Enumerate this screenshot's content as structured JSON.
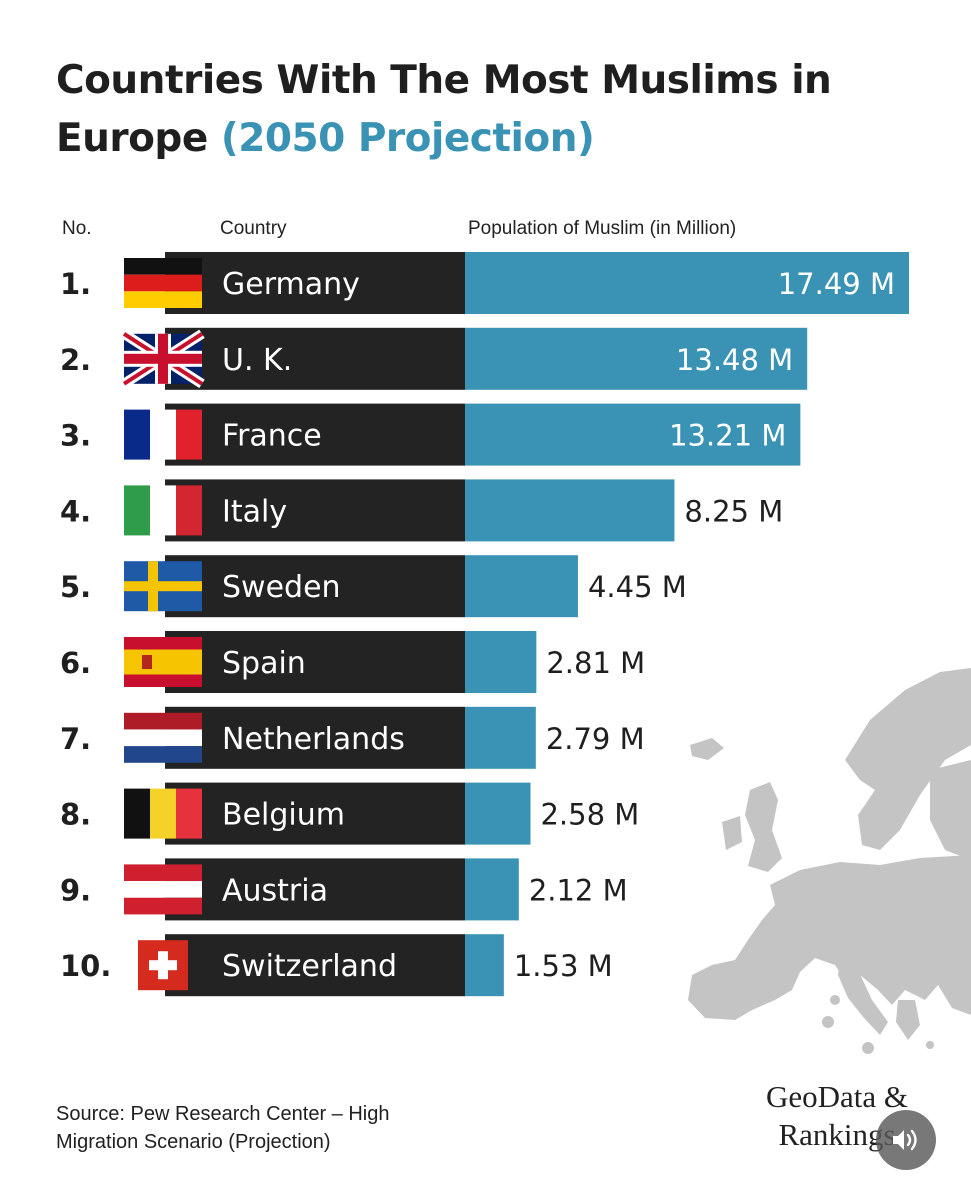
{
  "header": {
    "title_main": "Countries With The Most Muslims in Europe",
    "title_accent": "(2050 Projection)"
  },
  "columns": {
    "rank": "No.",
    "country": "Country",
    "population": "Population of Muslim (in Million)"
  },
  "chart_data": {
    "type": "bar",
    "orientation": "horizontal",
    "title": "Countries With The Most Muslims in Europe (2050 Projection)",
    "value_label": "Population of Muslim (in Million)",
    "unit_suffix": " M",
    "bar_color": "#3a93b4",
    "label_panel_color": "#232324",
    "ranks": [
      "1.",
      "2.",
      "3.",
      "4.",
      "5.",
      "6.",
      "7.",
      "8.",
      "9.",
      "10."
    ],
    "categories": [
      "Germany",
      "U. K.",
      "France",
      "Italy",
      "Sweden",
      "Spain",
      "Netherlands",
      "Belgium",
      "Austria",
      "Switzerland"
    ],
    "values": [
      17.49,
      13.48,
      13.21,
      8.25,
      4.45,
      2.81,
      2.79,
      2.58,
      2.12,
      1.53
    ],
    "value_labels": [
      "17.49 M",
      "13.48 M",
      "13.21 M",
      "8.25 M",
      "4.45 M",
      "2.81 M",
      "2.79 M",
      "2.58 M",
      "2.12 M",
      "1.53 M"
    ],
    "flags": [
      "germany-flag",
      "uk-flag",
      "france-flag",
      "italy-flag",
      "sweden-flag",
      "spain-flag",
      "netherlands-flag",
      "belgium-flag",
      "austria-flag",
      "switzerland-flag"
    ],
    "grid": false,
    "legend": "none"
  },
  "footer": {
    "source_line1": "Source: Pew Research Center – High",
    "source_line2": "Migration Scenario (Projection)",
    "logo_line1": "GeoData &",
    "logo_line2": "Rankings"
  },
  "icons": {
    "sound": "speaker-icon",
    "map": "europe-map-icon"
  }
}
